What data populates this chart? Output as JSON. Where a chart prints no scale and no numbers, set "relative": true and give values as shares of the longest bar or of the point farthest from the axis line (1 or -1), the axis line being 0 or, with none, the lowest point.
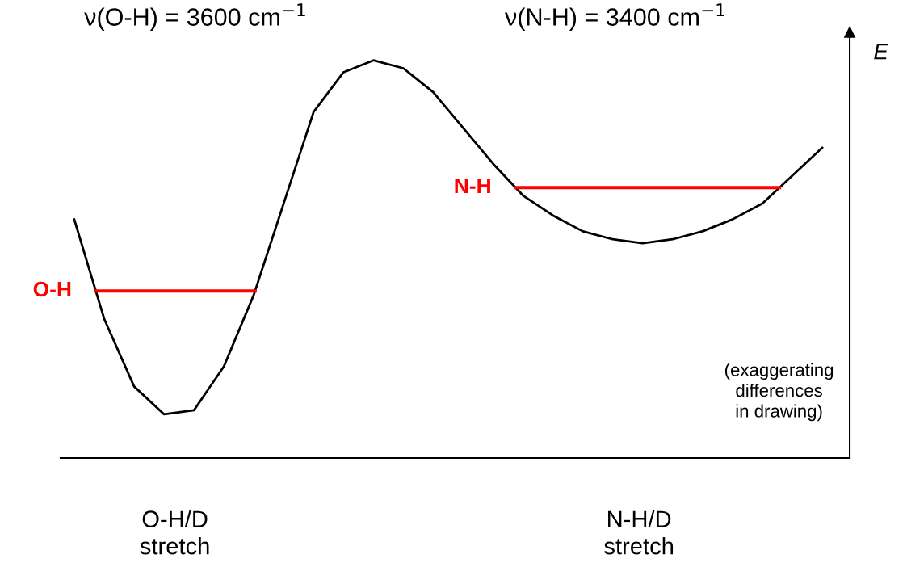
{
  "chart_data": {
    "type": "line",
    "relative": true,
    "ylabel": "E",
    "categories": [
      null,
      null,
      null,
      null,
      null,
      null,
      null,
      null,
      null,
      null,
      null,
      null,
      null,
      null,
      null,
      null,
      null,
      null,
      null,
      null,
      null,
      null,
      null,
      null,
      null,
      null
    ],
    "series": [
      {
        "color": "#000000",
        "values": [
          0.6,
          0.35,
          0.18,
          0.11,
          0.12,
          0.23,
          0.41,
          0.64,
          0.87,
          0.97,
          1.0,
          0.98,
          0.92,
          0.83,
          0.74,
          0.66,
          0.61,
          0.57,
          0.55,
          0.54,
          0.55,
          0.57,
          0.6,
          0.64,
          0.71,
          0.78
        ]
      }
    ],
    "ref_lines": [
      {
        "axis": "y",
        "value": 0.42,
        "label": "O-H",
        "color": "#ff0000"
      },
      {
        "axis": "y",
        "value": 0.68,
        "label": "N-H",
        "color": "#ff0000"
      }
    ],
    "annotations": [
      "ν(O-H) = 3600 cm$^{−1}$",
      "ν(N-H) = 3400 cm$^{−1}$",
      "(exaggerating\ndifferences\nin drawing)",
      "O-H/D\nstretch",
      "N-H/D\nstretch"
    ],
    "grid": false,
    "legend": false,
    "marker": "none",
    "line_style": "solid"
  }
}
